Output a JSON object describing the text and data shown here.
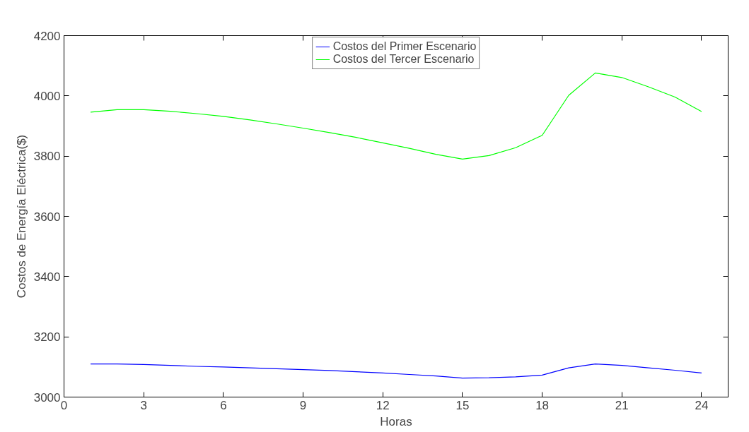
{
  "chart_data": {
    "type": "line",
    "xlabel": "Horas",
    "ylabel": "Costos de Energía Eléctrica($)",
    "x": [
      1,
      2,
      3,
      4,
      5,
      6,
      7,
      8,
      9,
      10,
      11,
      12,
      13,
      14,
      15,
      16,
      17,
      18,
      19,
      20,
      21,
      22,
      23,
      24
    ],
    "series": [
      {
        "name": "Costos del Primer Escenario",
        "color": "#0000ff",
        "values": [
          3110,
          3110,
          3108,
          3105,
          3102,
          3100,
          3097,
          3094,
          3091,
          3088,
          3084,
          3080,
          3075,
          3070,
          3063,
          3064,
          3067,
          3073,
          3097,
          3110,
          3105,
          3097,
          3089,
          3080
        ]
      },
      {
        "name": "Costos del Tercer Escenario",
        "color": "#00ff00",
        "values": [
          3946,
          3954,
          3954,
          3949,
          3941,
          3932,
          3920,
          3907,
          3893,
          3878,
          3862,
          3844,
          3826,
          3806,
          3790,
          3802,
          3828,
          3869,
          4002,
          4076,
          4061,
          4030,
          3996,
          3948
        ]
      }
    ],
    "xlim": [
      0,
      25
    ],
    "xticks": [
      0,
      3,
      6,
      9,
      12,
      15,
      18,
      21,
      24
    ],
    "ylim": [
      3000,
      4200
    ],
    "yticks": [
      3000,
      3200,
      3400,
      3600,
      3800,
      4000,
      4200
    ],
    "grid": false,
    "legend": "top",
    "line_style": "solid",
    "marker": "none"
  }
}
